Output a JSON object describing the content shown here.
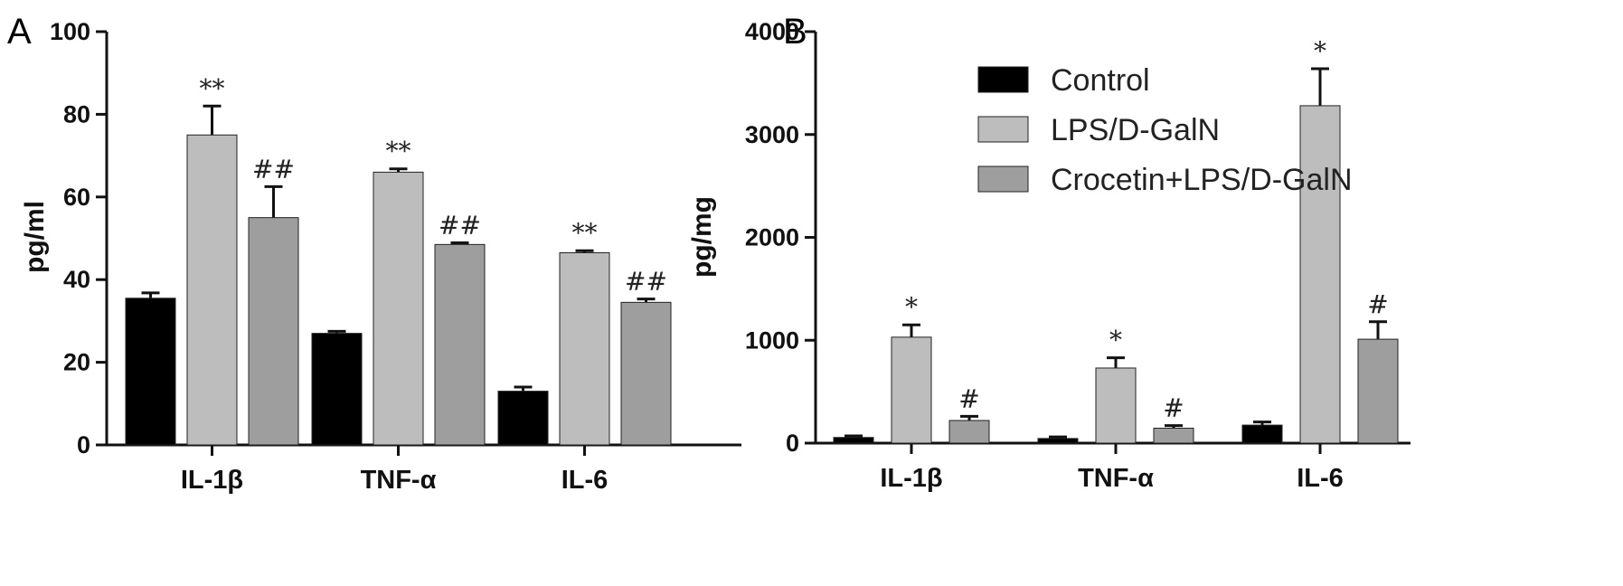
{
  "chart_data": [
    {
      "type": "bar",
      "panel": "A",
      "ylabel": "pg/ml",
      "ylim": [
        0,
        100
      ],
      "yticks": [
        "0",
        "20",
        "40",
        "60",
        "80",
        "100"
      ],
      "categories": [
        "IL-1β",
        "TNF-α",
        "IL-6"
      ],
      "series": [
        {
          "name": "Control",
          "color": "#000000",
          "values": [
            35.5,
            27,
            13
          ],
          "errors": [
            1.3,
            0.5,
            1.0
          ]
        },
        {
          "name": "LPS/D-GalN",
          "color": "#bdbdbd",
          "values": [
            75,
            66,
            46.5
          ],
          "errors": [
            7,
            0.8,
            0.5
          ],
          "marks": [
            "**",
            "**",
            "**"
          ]
        },
        {
          "name": "Crocetin+LPS/D-GalN",
          "color": "#9e9e9e",
          "values": [
            55,
            48.5,
            34.5
          ],
          "errors": [
            7.5,
            0.4,
            0.8
          ],
          "marks": [
            "##",
            "##",
            "##"
          ]
        }
      ]
    },
    {
      "type": "bar",
      "panel": "B",
      "ylabel": "pg/mg",
      "ylim": [
        0,
        4000
      ],
      "yticks": [
        "0",
        "1000",
        "2000",
        "3000",
        "4000"
      ],
      "categories": [
        "IL-1β",
        "TNF-α",
        "IL-6"
      ],
      "legend": {
        "placement": "top-center",
        "entries": [
          "Control",
          "LPS/D-GalN",
          "Crocetin+LPS/D-GalN"
        ]
      },
      "series": [
        {
          "name": "Control",
          "color": "#000000",
          "values": [
            55,
            45,
            175
          ],
          "errors": [
            15,
            15,
            30
          ]
        },
        {
          "name": "LPS/D-GalN",
          "color": "#bdbdbd",
          "values": [
            1030,
            730,
            3280
          ],
          "errors": [
            120,
            100,
            360
          ],
          "marks": [
            "*",
            "*",
            "*"
          ]
        },
        {
          "name": "Crocetin+LPS/D-GalN",
          "color": "#9e9e9e",
          "values": [
            220,
            145,
            1010
          ],
          "errors": [
            40,
            25,
            170
          ],
          "marks": [
            "#",
            "#",
            "#"
          ]
        }
      ]
    }
  ]
}
